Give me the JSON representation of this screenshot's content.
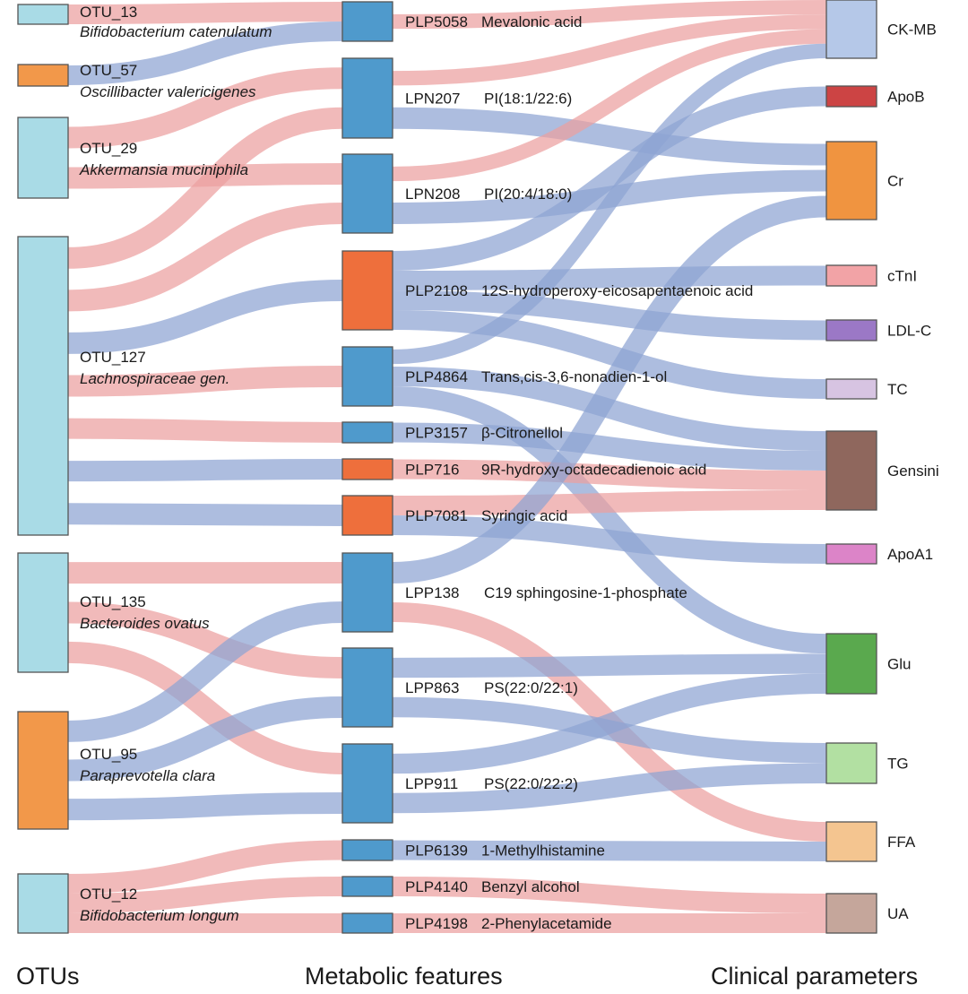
{
  "colors": {
    "positive": "#eba0a0",
    "negative": "#8ea3d3",
    "otu_teal": "#a9dbe6",
    "otu_orange": "#f2984a",
    "met_blue": "#4f9acc",
    "met_orange": "#ee6f3c",
    "node_stroke": "#555555"
  },
  "axis_titles": {
    "otus": "OTUs",
    "metabolic": "Metabolic features",
    "clinical": "Clinical parameters"
  },
  "otus": [
    {
      "id": "OTU_13",
      "taxon": "Bifidobacterium catenulatum",
      "color": "#a9dbe6"
    },
    {
      "id": "OTU_57",
      "taxon": "Oscillibacter valericigenes",
      "color": "#f2984a"
    },
    {
      "id": "OTU_29",
      "taxon": "Akkermansia muciniphila",
      "color": "#a9dbe6"
    },
    {
      "id": "OTU_127",
      "taxon": "Lachnospiraceae gen.",
      "color": "#a9dbe6"
    },
    {
      "id": "OTU_135",
      "taxon": "Bacteroides ovatus",
      "color": "#a9dbe6"
    },
    {
      "id": "OTU_95",
      "taxon": "Paraprevotella clara",
      "color": "#f2984a"
    },
    {
      "id": "OTU_12",
      "taxon": "Bifidobacterium longum",
      "color": "#a9dbe6"
    }
  ],
  "metabolites": [
    {
      "id": "PLP5058",
      "name": "Mevalonic acid",
      "color": "#4f9acc"
    },
    {
      "id": "LPN207",
      "name": "PI(18:1/22:6)",
      "color": "#4f9acc"
    },
    {
      "id": "LPN208",
      "name": "PI(20:4/18:0)",
      "color": "#4f9acc"
    },
    {
      "id": "PLP2108",
      "name": "12S-hydroperoxy-eicosapentaenoic acid",
      "color": "#ee6f3c"
    },
    {
      "id": "PLP4864",
      "name": "Trans,cis-3,6-nonadien-1-ol",
      "color": "#4f9acc"
    },
    {
      "id": "PLP3157",
      "name": "β-Citronellol",
      "color": "#4f9acc"
    },
    {
      "id": "PLP716",
      "name": "9R-hydroxy-octadecadienoic acid",
      "color": "#ee6f3c"
    },
    {
      "id": "PLP7081",
      "name": "Syringic acid",
      "color": "#ee6f3c"
    },
    {
      "id": "LPP138",
      "name": "C19 sphingosine-1-phosphate",
      "color": "#4f9acc"
    },
    {
      "id": "LPP863",
      "name": "PS(22:0/22:1)",
      "color": "#4f9acc"
    },
    {
      "id": "LPP911",
      "name": "PS(22:0/22:2)",
      "color": "#4f9acc"
    },
    {
      "id": "PLP6139",
      "name": "1-Methylhistamine",
      "color": "#4f9acc"
    },
    {
      "id": "PLP4140",
      "name": "Benzyl alcohol",
      "color": "#4f9acc"
    },
    {
      "id": "PLP4198",
      "name": "2-Phenylacetamide",
      "color": "#4f9acc"
    }
  ],
  "clinical": [
    {
      "id": "CK-MB",
      "color": "#b5c8e8"
    },
    {
      "id": "ApoB",
      "color": "#cc4444"
    },
    {
      "id": "Cr",
      "color": "#f09440"
    },
    {
      "id": "cTnI",
      "color": "#f2a3a6"
    },
    {
      "id": "LDL-C",
      "color": "#9b78c6"
    },
    {
      "id": "TC",
      "color": "#d7c4e2"
    },
    {
      "id": "Gensini",
      "color": "#8f675d"
    },
    {
      "id": "ApoA1",
      "color": "#dc84c8"
    },
    {
      "id": "Glu",
      "color": "#5aa94e"
    },
    {
      "id": "TG",
      "color": "#b2e0a2"
    },
    {
      "id": "FFA",
      "color": "#f4c590"
    },
    {
      "id": "UA",
      "color": "#c5a69b"
    }
  ],
  "links_otu_met": [
    {
      "from": "OTU_13",
      "to": "PLP5058",
      "sign": "positive"
    },
    {
      "from": "OTU_57",
      "to": "PLP5058",
      "sign": "negative"
    },
    {
      "from": "OTU_29",
      "to": "LPN207",
      "sign": "positive"
    },
    {
      "from": "OTU_29",
      "to": "LPN208",
      "sign": "positive"
    },
    {
      "from": "OTU_127",
      "to": "LPN207",
      "sign": "positive"
    },
    {
      "from": "OTU_127",
      "to": "LPN208",
      "sign": "positive"
    },
    {
      "from": "OTU_127",
      "to": "PLP2108",
      "sign": "negative"
    },
    {
      "from": "OTU_127",
      "to": "PLP4864",
      "sign": "positive"
    },
    {
      "from": "OTU_127",
      "to": "PLP3157",
      "sign": "positive"
    },
    {
      "from": "OTU_127",
      "to": "PLP716",
      "sign": "negative"
    },
    {
      "from": "OTU_127",
      "to": "PLP7081",
      "sign": "negative"
    },
    {
      "from": "OTU_135",
      "to": "LPP138",
      "sign": "positive"
    },
    {
      "from": "OTU_135",
      "to": "LPP863",
      "sign": "positive"
    },
    {
      "from": "OTU_135",
      "to": "LPP911",
      "sign": "positive"
    },
    {
      "from": "OTU_95",
      "to": "LPP138",
      "sign": "negative"
    },
    {
      "from": "OTU_95",
      "to": "LPP863",
      "sign": "negative"
    },
    {
      "from": "OTU_95",
      "to": "LPP911",
      "sign": "negative"
    },
    {
      "from": "OTU_12",
      "to": "PLP6139",
      "sign": "positive"
    },
    {
      "from": "OTU_12",
      "to": "PLP4140",
      "sign": "positive"
    },
    {
      "from": "OTU_12",
      "to": "PLP4198",
      "sign": "positive"
    }
  ],
  "links_met_clin": [
    {
      "from": "PLP5058",
      "to": "CK-MB",
      "sign": "positive"
    },
    {
      "from": "LPN207",
      "to": "CK-MB",
      "sign": "positive"
    },
    {
      "from": "LPN207",
      "to": "Cr",
      "sign": "negative"
    },
    {
      "from": "LPN208",
      "to": "CK-MB",
      "sign": "positive"
    },
    {
      "from": "LPN208",
      "to": "Cr",
      "sign": "negative"
    },
    {
      "from": "PLP2108",
      "to": "ApoB",
      "sign": "negative"
    },
    {
      "from": "PLP2108",
      "to": "cTnI",
      "sign": "negative"
    },
    {
      "from": "PLP2108",
      "to": "LDL-C",
      "sign": "negative"
    },
    {
      "from": "PLP2108",
      "to": "TC",
      "sign": "negative"
    },
    {
      "from": "PLP4864",
      "to": "CK-MB",
      "sign": "negative"
    },
    {
      "from": "PLP4864",
      "to": "Gensini",
      "sign": "negative"
    },
    {
      "from": "PLP4864",
      "to": "Glu",
      "sign": "negative"
    },
    {
      "from": "PLP3157",
      "to": "Gensini",
      "sign": "negative"
    },
    {
      "from": "PLP716",
      "to": "Gensini",
      "sign": "positive"
    },
    {
      "from": "PLP7081",
      "to": "Gensini",
      "sign": "positive"
    },
    {
      "from": "PLP7081",
      "to": "ApoA1",
      "sign": "negative"
    },
    {
      "from": "LPP138",
      "to": "Cr",
      "sign": "negative"
    },
    {
      "from": "LPP138",
      "to": "FFA",
      "sign": "positive"
    },
    {
      "from": "LPP863",
      "to": "Glu",
      "sign": "negative"
    },
    {
      "from": "LPP863",
      "to": "TG",
      "sign": "negative"
    },
    {
      "from": "LPP911",
      "to": "Glu",
      "sign": "negative"
    },
    {
      "from": "LPP911",
      "to": "TG",
      "sign": "negative"
    },
    {
      "from": "PLP6139",
      "to": "FFA",
      "sign": "negative"
    },
    {
      "from": "PLP4140",
      "to": "UA",
      "sign": "positive"
    },
    {
      "from": "PLP4198",
      "to": "UA",
      "sign": "positive"
    }
  ]
}
